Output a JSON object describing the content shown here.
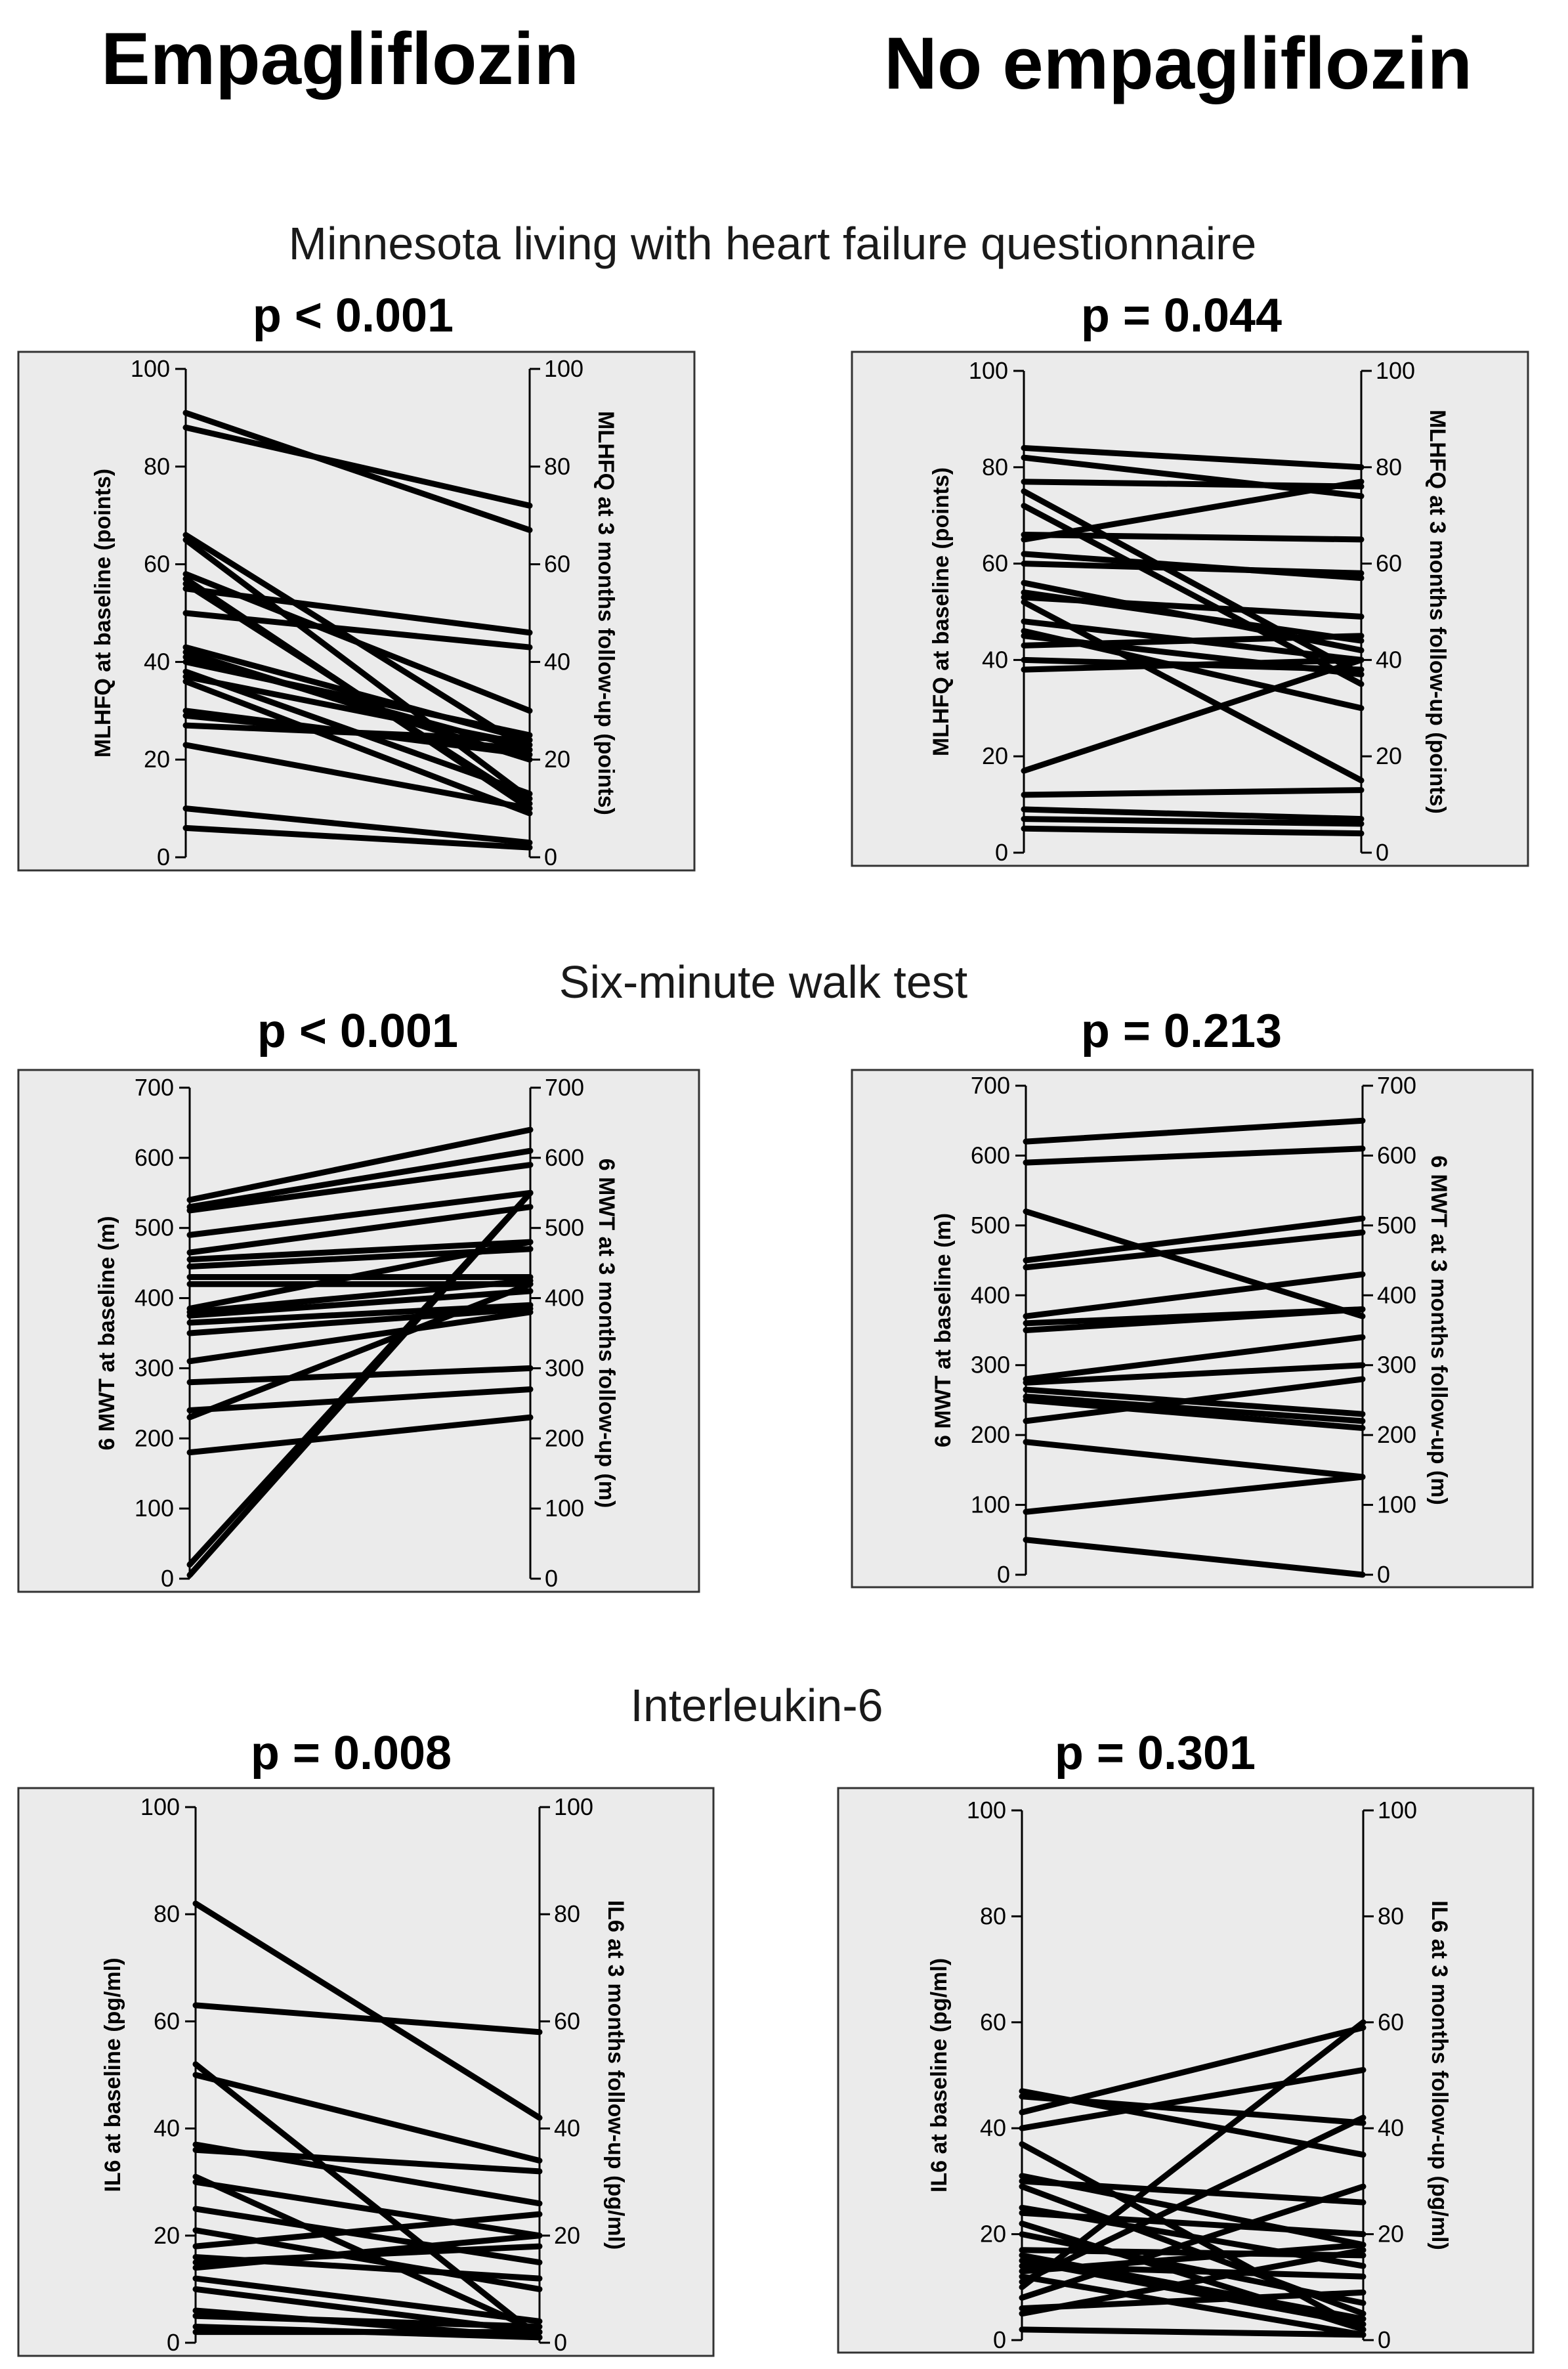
{
  "columns": {
    "left": "Empagliflozin",
    "right": "No empagliflozin"
  },
  "sections": [
    "Minnesota living with heart failure questionnaire",
    "Six-minute walk test",
    "Interleukin-6"
  ],
  "chart_data": [
    {
      "type": "slope",
      "section": "Minnesota living with heart failure questionnaire",
      "group": "Empagliflozin",
      "title": "p < 0.001",
      "ylabel_left": "MLHFQ at baseline (points)",
      "ylabel_right": "MLHFQ at 3 months follow-up (points)",
      "ylim": [
        0,
        100
      ],
      "yticks": [
        "0",
        "20",
        "40",
        "60",
        "80",
        "100"
      ],
      "pairs": [
        [
          91,
          67
        ],
        [
          88,
          72
        ],
        [
          66,
          22
        ],
        [
          65,
          12
        ],
        [
          58,
          30
        ],
        [
          57,
          10
        ],
        [
          56,
          11
        ],
        [
          55,
          46
        ],
        [
          50,
          43
        ],
        [
          43,
          24
        ],
        [
          42,
          20
        ],
        [
          41,
          22
        ],
        [
          40,
          25
        ],
        [
          38,
          13
        ],
        [
          37,
          23
        ],
        [
          36,
          9
        ],
        [
          30,
          21
        ],
        [
          29,
          22
        ],
        [
          27,
          24
        ],
        [
          23,
          10
        ],
        [
          10,
          3
        ],
        [
          6,
          2
        ]
      ]
    },
    {
      "type": "slope",
      "section": "Minnesota living with heart failure questionnaire",
      "group": "No empagliflozin",
      "title": "p = 0.044",
      "ylabel_left": "MLHFQ at baseline (points)",
      "ylabel_right": "MLHFQ at 3 months follow-up (points)",
      "ylim": [
        0,
        100
      ],
      "yticks": [
        "0",
        "20",
        "40",
        "60",
        "80",
        "100"
      ],
      "pairs": [
        [
          84,
          80
        ],
        [
          82,
          74
        ],
        [
          77,
          76
        ],
        [
          75,
          37
        ],
        [
          72,
          35
        ],
        [
          66,
          65
        ],
        [
          65,
          77
        ],
        [
          62,
          57
        ],
        [
          60,
          58
        ],
        [
          56,
          42
        ],
        [
          54,
          44
        ],
        [
          53,
          49
        ],
        [
          52,
          15
        ],
        [
          48,
          40
        ],
        [
          46,
          30
        ],
        [
          45,
          37
        ],
        [
          43,
          45
        ],
        [
          40,
          38
        ],
        [
          38,
          40
        ],
        [
          17,
          40
        ],
        [
          12,
          13
        ],
        [
          9,
          7
        ],
        [
          7,
          6
        ],
        [
          5,
          4
        ]
      ]
    },
    {
      "type": "slope",
      "section": "Six-minute walk test",
      "group": "Empagliflozin",
      "title": "p < 0.001",
      "ylabel_left": "6 MWT at baseline (m)",
      "ylabel_right": "6 MWT at 3 months follow-up (m)",
      "ylim": [
        0,
        700
      ],
      "yticks": [
        "0",
        "100",
        "200",
        "300",
        "400",
        "500",
        "600",
        "700"
      ],
      "pairs": [
        [
          540,
          640
        ],
        [
          530,
          610
        ],
        [
          525,
          590
        ],
        [
          490,
          550
        ],
        [
          465,
          530
        ],
        [
          455,
          480
        ],
        [
          445,
          470
        ],
        [
          430,
          430
        ],
        [
          420,
          420
        ],
        [
          385,
          480
        ],
        [
          380,
          425
        ],
        [
          375,
          410
        ],
        [
          365,
          390
        ],
        [
          350,
          385
        ],
        [
          310,
          380
        ],
        [
          280,
          300
        ],
        [
          240,
          270
        ],
        [
          230,
          420
        ],
        [
          180,
          230
        ],
        [
          20,
          550
        ],
        [
          5,
          550
        ]
      ]
    },
    {
      "type": "slope",
      "section": "Six-minute walk test",
      "group": "No empagliflozin",
      "title": "p = 0.213",
      "ylabel_left": "6 MWT at baseline (m)",
      "ylabel_right": "6 MWT at 3 months follow-up (m)",
      "ylim": [
        0,
        700
      ],
      "yticks": [
        "0",
        "100",
        "200",
        "300",
        "400",
        "500",
        "600",
        "700"
      ],
      "pairs": [
        [
          620,
          650
        ],
        [
          590,
          610
        ],
        [
          520,
          370
        ],
        [
          450,
          510
        ],
        [
          440,
          490
        ],
        [
          370,
          430
        ],
        [
          360,
          380
        ],
        [
          350,
          380
        ],
        [
          280,
          340
        ],
        [
          275,
          300
        ],
        [
          265,
          230
        ],
        [
          255,
          220
        ],
        [
          250,
          210
        ],
        [
          220,
          280
        ],
        [
          190,
          140
        ],
        [
          90,
          140
        ],
        [
          50,
          0
        ]
      ]
    },
    {
      "type": "slope",
      "section": "Interleukin-6",
      "group": "Empagliflozin",
      "title": "p = 0.008",
      "ylabel_left": "IL6 at baseline (pg/ml)",
      "ylabel_right": "IL6 at 3 months follow-up (pg/ml)",
      "ylim": [
        0,
        100
      ],
      "yticks": [
        "0",
        "20",
        "40",
        "60",
        "80",
        "100"
      ],
      "pairs": [
        [
          82,
          42
        ],
        [
          63,
          58
        ],
        [
          52,
          1
        ],
        [
          50,
          34
        ],
        [
          37,
          26
        ],
        [
          36,
          32
        ],
        [
          31,
          2
        ],
        [
          30,
          20
        ],
        [
          25,
          15
        ],
        [
          21,
          10
        ],
        [
          18,
          24
        ],
        [
          16,
          12
        ],
        [
          15,
          18
        ],
        [
          14,
          20
        ],
        [
          12,
          4
        ],
        [
          10,
          2
        ],
        [
          6,
          1
        ],
        [
          5,
          3
        ],
        [
          3,
          1
        ],
        [
          2,
          2
        ]
      ]
    },
    {
      "type": "slope",
      "section": "Interleukin-6",
      "group": "No empagliflozin",
      "title": "p = 0.301",
      "ylabel_left": "IL6 at baseline (pg/ml)",
      "ylabel_right": "IL6 at 3 months follow-up (pg/ml)",
      "ylim": [
        0,
        100
      ],
      "yticks": [
        "0",
        "20",
        "40",
        "60",
        "80",
        "100"
      ],
      "pairs": [
        [
          47,
          35
        ],
        [
          46,
          41
        ],
        [
          43,
          59
        ],
        [
          40,
          51
        ],
        [
          37,
          2
        ],
        [
          31,
          18
        ],
        [
          30,
          26
        ],
        [
          29,
          5
        ],
        [
          25,
          14
        ],
        [
          24,
          20
        ],
        [
          22,
          2
        ],
        [
          20,
          7
        ],
        [
          17,
          16
        ],
        [
          16,
          4
        ],
        [
          15,
          3
        ],
        [
          14,
          12
        ],
        [
          13,
          18
        ],
        [
          12,
          1
        ],
        [
          11,
          42
        ],
        [
          10,
          60
        ],
        [
          8,
          29
        ],
        [
          6,
          9
        ],
        [
          5,
          17
        ],
        [
          2,
          1
        ]
      ]
    }
  ]
}
